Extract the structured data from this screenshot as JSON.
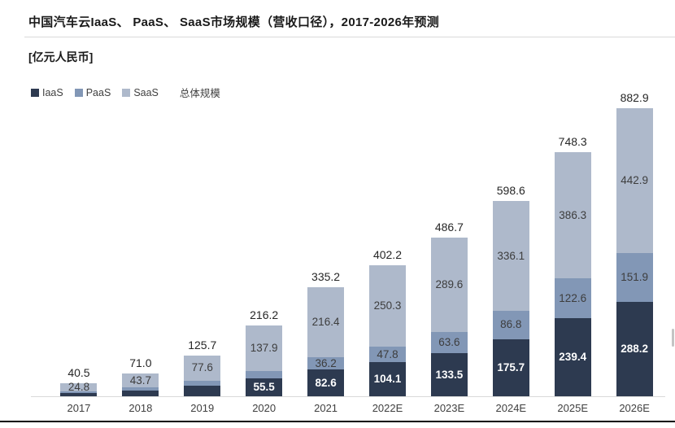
{
  "header": {
    "title": "中国汽车云IaaS、 PaaS、 SaaS市场规模（营收口径），2017-2026年预测",
    "unit_label": "[亿元人民币]"
  },
  "legend": {
    "items": [
      {
        "label": "IaaS",
        "color": "#2d3a50"
      },
      {
        "label": "PaaS",
        "color": "#8297b6"
      },
      {
        "label": "SaaS",
        "color": "#aeb9cb"
      }
    ],
    "total_label": "总体规模"
  },
  "chart_data": {
    "type": "bar",
    "stacked": true,
    "title": "中国汽车云IaaS、 PaaS、 SaaS市场规模（营收口径），2017-2026年预测",
    "ylabel": "[亿元人民币]",
    "legend_position": "top-left",
    "grid": false,
    "ylim": [
      0,
      900
    ],
    "categories": [
      "2017",
      "2018",
      "2019",
      "2020",
      "2021",
      "2022E",
      "2023E",
      "2024E",
      "2025E",
      "2026E"
    ],
    "series": [
      {
        "name": "IaaS",
        "color": "#2d3a50",
        "label_color": "#ffffff",
        "label_bold": true,
        "values": [
          10.0,
          17.6,
          32.0,
          55.5,
          82.6,
          104.1,
          133.5,
          175.7,
          239.4,
          288.2
        ],
        "shown_labels": [
          "",
          "",
          "",
          "55.5",
          "82.6",
          "104.1",
          "133.5",
          "175.7",
          "239.4",
          "288.2"
        ]
      },
      {
        "name": "PaaS",
        "color": "#8297b6",
        "label_color": "#3d3d3d",
        "label_bold": false,
        "values": [
          5.7,
          9.7,
          16.1,
          22.8,
          36.2,
          47.8,
          63.6,
          86.8,
          122.6,
          151.9
        ],
        "shown_labels": [
          "",
          "",
          "",
          "",
          "36.2",
          "47.8",
          "63.6",
          "86.8",
          "122.6",
          "151.9"
        ]
      },
      {
        "name": "SaaS",
        "color": "#aeb9cb",
        "label_color": "#3d3d3d",
        "label_bold": false,
        "values": [
          24.8,
          43.7,
          77.6,
          137.9,
          216.4,
          250.3,
          289.6,
          336.1,
          386.3,
          442.9
        ],
        "shown_labels": [
          "24.8",
          "43.7",
          "77.6",
          "137.9",
          "216.4",
          "250.3",
          "289.6",
          "336.1",
          "386.3",
          "442.9"
        ]
      }
    ],
    "totals": [
      40.5,
      71.0,
      125.7,
      216.2,
      335.2,
      402.2,
      486.7,
      598.6,
      748.3,
      882.9
    ],
    "total_labels": [
      "40.5",
      "71.0",
      "125.7",
      "216.2",
      "335.2",
      "402.2",
      "486.7",
      "598.6",
      "748.3",
      "882.9"
    ]
  },
  "colors": {
    "axis_line": "#d9d9d9",
    "bottom_border": "#000000",
    "total_label_text": "#262626",
    "axis_label_text": "#404040"
  }
}
